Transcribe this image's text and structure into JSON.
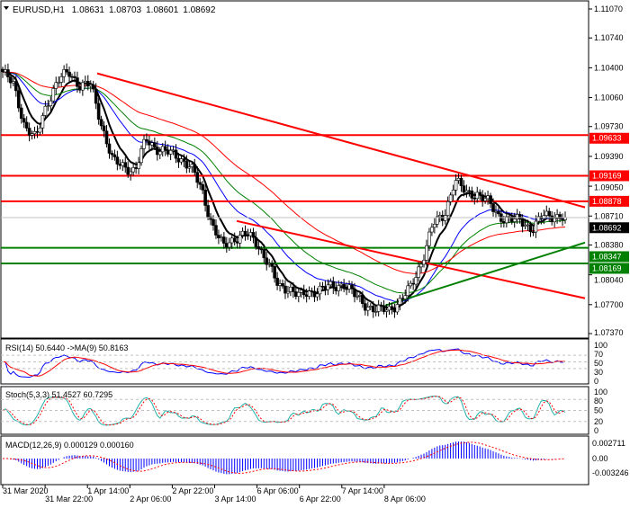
{
  "header": {
    "symbol": "EURUSD,H1",
    "open": "1.08631",
    "high": "1.08703",
    "low": "1.08601",
    "close": "1.08692"
  },
  "chart_data": [
    {
      "type": "candlestick",
      "pane": "price",
      "y_ticks": [
        "1.11070",
        "1.10740",
        "1.10400",
        "1.10060",
        "1.09730",
        "1.09390",
        "1.09050",
        "1.08710",
        "1.08380",
        "1.08040",
        "1.07700",
        "1.07370"
      ],
      "ylim": [
        1.0737,
        1.1107
      ],
      "close_path": [
        1.10353,
        1.10199,
        1.09738,
        1.09584,
        1.09994,
        1.1025,
        1.10353,
        1.10199,
        1.10199,
        1.09738,
        1.09328,
        1.09276,
        1.09225,
        1.09584,
        1.09481,
        1.0943,
        1.09379,
        1.09276,
        1.0902,
        1.0861,
        1.08354,
        1.08457,
        1.08508,
        1.08405,
        1.082,
        1.07893,
        1.07893,
        1.0779,
        1.07842,
        1.07893,
        1.07893,
        1.07944,
        1.0779,
        1.07688,
        1.07637,
        1.07637,
        1.07739,
        1.07893,
        1.082,
        1.0861,
        1.08713,
        1.09123,
        1.08969,
        1.08969,
        1.08866,
        1.08713,
        1.08661,
        1.08661,
        1.08559,
        1.08713,
        1.08713,
        1.08692
      ],
      "levels": [
        {
          "price": "1.09633",
          "color": "#ff0000"
        },
        {
          "price": "1.09169",
          "color": "#ff0000"
        },
        {
          "price": "1.08878",
          "color": "#ff0000"
        },
        {
          "price": "1.08347",
          "color": "#008000"
        },
        {
          "price": "1.08169",
          "color": "#008000"
        }
      ],
      "current_price": "1.08692",
      "trendlines": [
        {
          "color": "#ff0000",
          "start_price": 1.10336,
          "end_price": 1.08809
        },
        {
          "color": "#ff0000",
          "start_price": 1.08653,
          "end_price": 1.07772
        },
        {
          "color": "#008000",
          "start_price": 1.0769,
          "end_price": 1.08407
        }
      ],
      "moving_averages": [
        {
          "color": "#000000"
        },
        {
          "color": "#0000ff"
        },
        {
          "color": "#008000"
        },
        {
          "color": "#ff0000"
        }
      ]
    },
    {
      "type": "line",
      "pane": "rsi",
      "label": "RSI(14) 50.6440  ->MA(9) 50.8163",
      "y_ticks": [
        "100",
        "70",
        "50",
        "30",
        "0"
      ],
      "ylim": [
        0,
        100
      ],
      "levels": [
        70,
        50,
        30
      ]
    },
    {
      "type": "line",
      "pane": "stoch",
      "label": "Stoch(5,3,3) 51.4527 60.7295",
      "y_ticks": [
        "100",
        "80",
        "50",
        "20",
        "0"
      ],
      "ylim": [
        0,
        100
      ],
      "levels": [
        80,
        50,
        20
      ]
    },
    {
      "type": "bar",
      "pane": "macd",
      "label": "MACD(12,26,9) 0.000129 0.000160",
      "y_ticks": [
        "0.002711",
        "0.00",
        "-0.003246"
      ],
      "ylim": [
        -0.003246,
        0.002711
      ]
    }
  ],
  "x_ticks": [
    "31 Mar 2020",
    "31 Mar 22:00",
    "1 Apr 14:00",
    "2 Apr 06:00",
    "2 Apr 22:00",
    "3 Apr 14:00",
    "6 Apr 06:00",
    "6 Apr 22:00",
    "7 Apr 14:00",
    "8 Apr 06:00"
  ],
  "colors": {
    "bull": "#ffffff",
    "bear": "#000000",
    "rsi": "#0000ff",
    "rsi_ma": "#ff0000",
    "stoch_main": "#20b2aa",
    "stoch_signal": "#ff0000",
    "macd_hist": "#0000ff",
    "macd_signal": "#ff0000"
  }
}
